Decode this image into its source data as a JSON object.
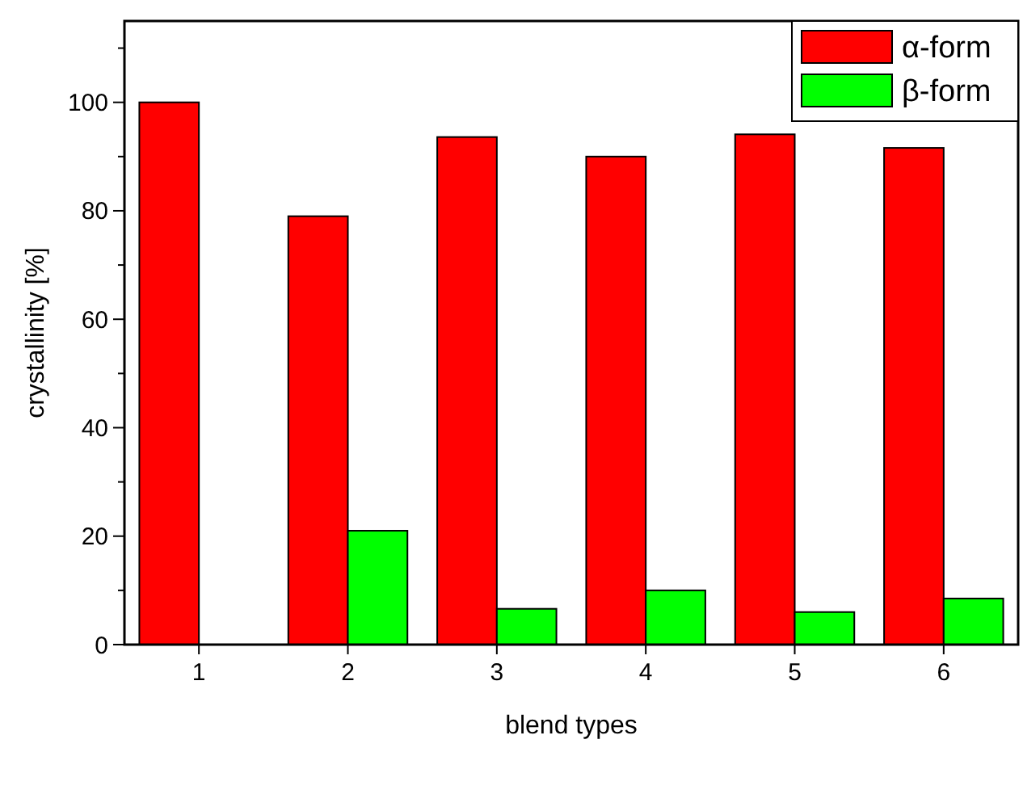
{
  "chart_data": {
    "type": "bar",
    "xlabel": "blend types",
    "ylabel": "crystallinity [%]",
    "categories": [
      "1",
      "2",
      "3",
      "4",
      "5",
      "6"
    ],
    "series": [
      {
        "name": "α-form",
        "color": "#ff0000",
        "values": [
          100,
          79,
          93.6,
          90,
          94.1,
          91.6
        ]
      },
      {
        "name": "β-form",
        "color": "#00ff00",
        "values": [
          0,
          21,
          6.6,
          10,
          6,
          8.5
        ]
      }
    ],
    "ylim": [
      0,
      115
    ],
    "yticks": [
      0,
      {
        "value": 10,
        "label": null
      },
      20,
      {
        "value": 30,
        "label": null
      },
      40,
      {
        "value": 50,
        "label": null
      },
      60,
      {
        "value": 70,
        "label": null
      },
      80,
      {
        "value": 90,
        "label": null
      },
      100,
      {
        "value": 110,
        "label": null
      }
    ],
    "grid": false,
    "legend": "top right"
  }
}
